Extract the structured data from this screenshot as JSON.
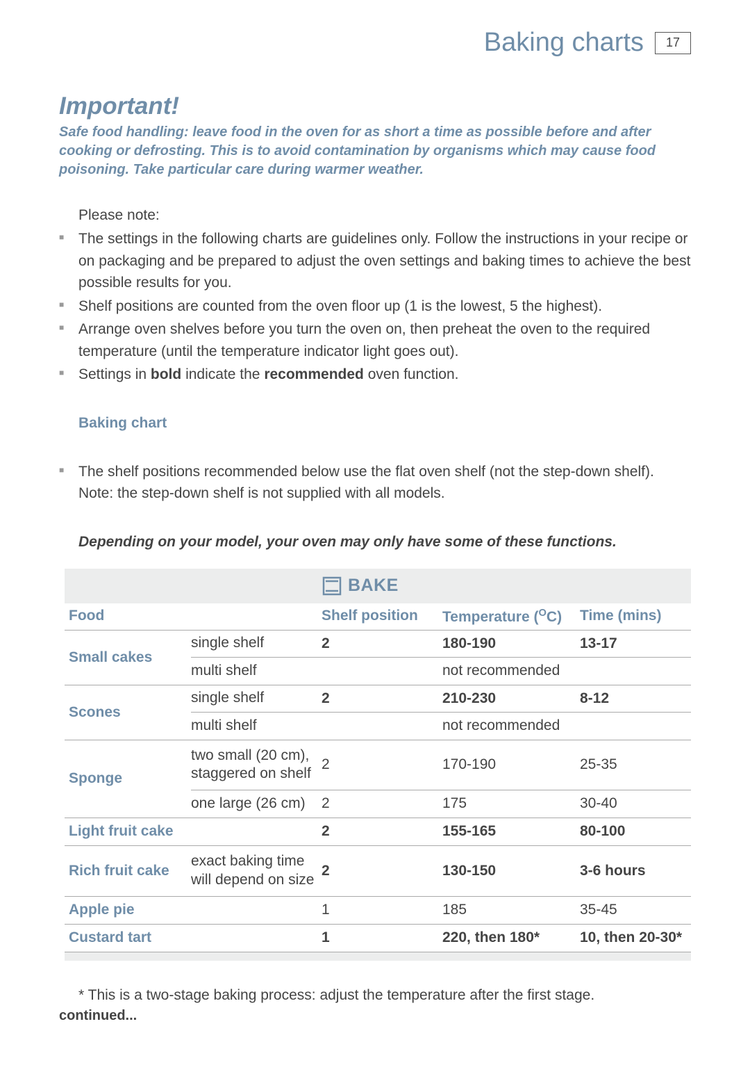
{
  "header": {
    "title": "Baking charts",
    "page_number": "17"
  },
  "important": {
    "heading": "Important!",
    "body": "Safe food handling: leave food in the oven for as short a time as possible before and after cooking or defrosting. This is to avoid contamination by organisms which may cause food poisoning. Take particular care during warmer weather."
  },
  "intro": {
    "lead": "Please note:",
    "bullets": [
      "The settings in the following charts are guidelines only. Follow the instructions in your recipe or on packaging and be prepared to adjust the oven settings and baking times to achieve the best possible results for you.",
      "Shelf positions are counted from the oven floor up (1 is the lowest,  5 the highest).",
      "Arrange oven shelves before you turn the oven on, then preheat the oven to the required temperature (until the temperature indicator light goes out)."
    ],
    "settings_line_pre": "Settings in ",
    "settings_bold1": "bold",
    "settings_mid": " indicate the ",
    "settings_bold2": "recommended",
    "settings_post": " oven function."
  },
  "section": {
    "subheading": "Baking chart",
    "shelf_note": "The shelf positions recommended below use the flat oven shelf (not the step-down shelf). Note: the step-down shelf is not supplied with all models.",
    "model_note": "Depending on your model, your oven may only have some of these functions."
  },
  "chart": {
    "bake_label": "BAKE",
    "columns": {
      "food": "Food",
      "shelf": "Shelf position",
      "temp_pre": "Temperature (",
      "temp_sup": "O",
      "temp_post": "C)",
      "time": "Time (mins)"
    },
    "rows": [
      {
        "food": "Small cakes",
        "subs": [
          {
            "label": "single shelf",
            "shelf": "2",
            "temp": "180-190",
            "time": "13-17",
            "bold": true,
            "div": true
          },
          {
            "label": "multi shelf",
            "shelf": "",
            "temp": "not recommended",
            "time": "",
            "bold": false,
            "div": false
          }
        ]
      },
      {
        "food": "Scones",
        "subs": [
          {
            "label": "single shelf",
            "shelf": "2",
            "temp": "210-230",
            "time": "8-12",
            "bold": true,
            "div": true
          },
          {
            "label": "multi shelf",
            "shelf": "",
            "temp": "not recommended",
            "time": "",
            "bold": false,
            "div": false
          }
        ]
      },
      {
        "food": "Sponge",
        "subs": [
          {
            "label": "two small (20 cm), staggered on shelf",
            "shelf": "2",
            "temp": "170-190",
            "time": "25-35",
            "bold": false,
            "div": true,
            "tall": true
          },
          {
            "label": "one large (26 cm)",
            "shelf": "2",
            "temp": "175",
            "time": "30-40",
            "bold": false,
            "div": false
          }
        ]
      },
      {
        "food": "Light fruit cake",
        "subs": [
          {
            "label": "",
            "shelf": "2",
            "temp": "155-165",
            "time": "80-100",
            "bold": true,
            "div": false
          }
        ]
      },
      {
        "food": "Rich fruit cake",
        "subs": [
          {
            "label": "exact baking time will depend on size",
            "shelf": "2",
            "temp": "130-150",
            "time": "3-6 hours",
            "bold": true,
            "div": false,
            "tall": true
          }
        ]
      },
      {
        "food": "Apple pie",
        "subs": [
          {
            "label": "",
            "shelf": "1",
            "temp": "185",
            "time": "35-45",
            "bold": false,
            "div": false
          }
        ]
      },
      {
        "food": "Custard tart",
        "subs": [
          {
            "label": "",
            "shelf": "1",
            "temp": "220, then 180*",
            "time": "10, then 20-30*",
            "bold": true,
            "div": false
          }
        ]
      }
    ]
  },
  "footer": {
    "footnote": "* This is a two-stage baking process: adjust the temperature after the first stage.",
    "continued": "continued..."
  },
  "colors": {
    "accent": "#6f8da8",
    "text": "#444444",
    "bullet": "#999999",
    "band": "#eceded",
    "rule": "#aaaaaa"
  }
}
